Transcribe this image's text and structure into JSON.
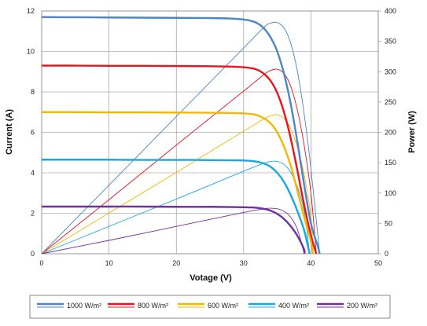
{
  "chart_data": {
    "type": "line",
    "title": "",
    "xlabel": "Votage (V)",
    "ylabel": "Current (A)",
    "y2label": "Power (W)",
    "xlim": [
      0,
      50
    ],
    "ylim": [
      0,
      12
    ],
    "y2lim": [
      0,
      400
    ],
    "xticks": [
      "0",
      "10",
      "20",
      "30",
      "40",
      "50"
    ],
    "yticks": [
      "0",
      "2",
      "4",
      "6",
      "8",
      "10",
      "12"
    ],
    "y2ticks": [
      "0",
      "50",
      "100",
      "150",
      "200",
      "250",
      "300",
      "350",
      "400"
    ],
    "grid": true,
    "legend_position": "bottom",
    "x_current": [
      0,
      5,
      10,
      15,
      20,
      25,
      28,
      30,
      31,
      32,
      33,
      34,
      35,
      36,
      37,
      38,
      39,
      40,
      41
    ],
    "series": [
      {
        "name": "1000 W/m²",
        "color": "#4a86c8",
        "isc": 11.7,
        "voc": 41.3,
        "current": [
          11.7,
          11.69,
          11.68,
          11.67,
          11.66,
          11.65,
          11.63,
          11.58,
          11.52,
          11.4,
          11.15,
          10.7,
          10.0,
          8.9,
          7.4,
          5.5,
          3.4,
          1.5,
          0.4
        ],
        "x_power": [
          0,
          10,
          20,
          30,
          33,
          34,
          35,
          36,
          37,
          38,
          39,
          40,
          41.3
        ],
        "power": [
          0,
          113,
          226,
          339,
          373,
          380,
          381,
          372,
          347,
          300,
          230,
          140,
          0
        ]
      },
      {
        "name": "800 W/m²",
        "color": "#e8141e",
        "isc": 9.3,
        "voc": 40.8,
        "current": [
          9.3,
          9.3,
          9.29,
          9.29,
          9.28,
          9.27,
          9.25,
          9.22,
          9.18,
          9.1,
          8.9,
          8.55,
          7.95,
          7.0,
          5.7,
          4.1,
          2.4,
          0.9,
          0.0
        ],
        "x_power": [
          0,
          10,
          20,
          30,
          33,
          34,
          35,
          36,
          37,
          38,
          39,
          40,
          40.8
        ],
        "power": [
          0,
          89,
          179,
          268,
          295,
          302,
          304,
          297,
          276,
          236,
          178,
          100,
          0
        ]
      },
      {
        "name": "600 W/m²",
        "color": "#f5b800",
        "isc": 7.0,
        "voc": 40.3,
        "current": [
          7.0,
          7.0,
          6.99,
          6.99,
          6.98,
          6.97,
          6.96,
          6.94,
          6.91,
          6.85,
          6.7,
          6.45,
          6.0,
          5.3,
          4.35,
          3.1,
          1.8,
          0.6,
          0.0
        ],
        "x_power": [
          0,
          10,
          20,
          30,
          33,
          34,
          35,
          36,
          37,
          38,
          39,
          40,
          40.3
        ],
        "power": [
          0,
          67,
          134,
          202,
          222,
          227,
          229,
          223,
          206,
          175,
          130,
          60,
          0
        ]
      },
      {
        "name": "400 W/m²",
        "color": "#1aa8e0",
        "isc": 4.65,
        "voc": 39.8,
        "current": [
          4.65,
          4.65,
          4.65,
          4.64,
          4.64,
          4.63,
          4.62,
          4.61,
          4.59,
          4.55,
          4.46,
          4.3,
          4.0,
          3.55,
          2.9,
          2.1,
          1.15,
          0.2,
          0.0
        ],
        "x_power": [
          0,
          10,
          20,
          30,
          33,
          34,
          35,
          36,
          37,
          38,
          39,
          39.8
        ],
        "power": [
          0,
          45,
          90,
          136,
          149,
          152,
          152,
          147,
          134,
          110,
          70,
          0
        ]
      },
      {
        "name": "200 W/m²",
        "color": "#7030a0",
        "isc": 2.33,
        "voc": 39.0,
        "current": [
          2.33,
          2.33,
          2.33,
          2.33,
          2.32,
          2.32,
          2.31,
          2.3,
          2.29,
          2.27,
          2.22,
          2.13,
          1.97,
          1.72,
          1.36,
          0.88,
          0.2,
          0.0,
          0.0
        ],
        "x_power": [
          0,
          10,
          20,
          30,
          33,
          34,
          35,
          36,
          37,
          38,
          39
        ],
        "power": [
          0,
          22,
          45,
          68,
          74,
          75,
          74,
          70,
          60,
          40,
          0
        ]
      }
    ]
  }
}
